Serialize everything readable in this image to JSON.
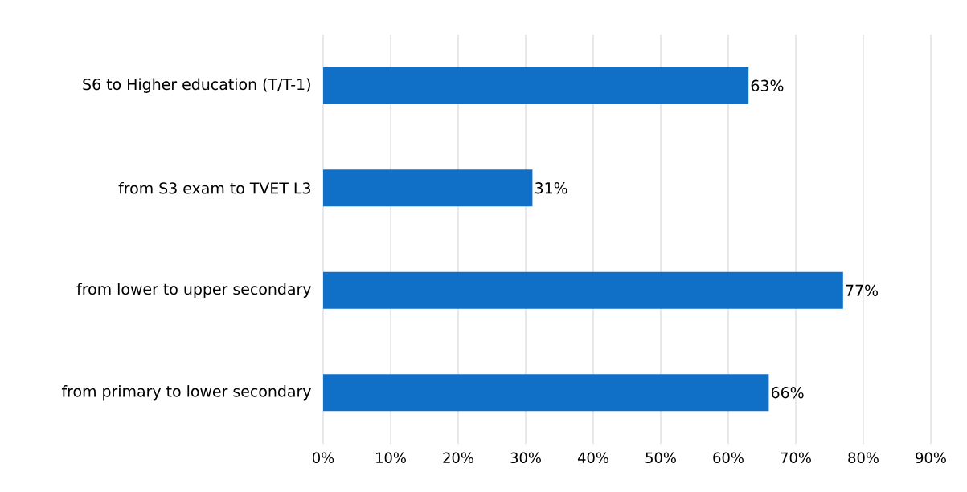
{
  "chart_data": {
    "type": "bar",
    "orientation": "horizontal",
    "categories": [
      "S6 to Higher education (T/T-1)",
      "from S3 exam to TVET L3",
      "from lower to upper secondary",
      "from primary to lower secondary"
    ],
    "values": [
      63,
      31,
      77,
      66
    ],
    "value_labels": [
      "63%",
      "31%",
      "77%",
      "66%"
    ],
    "color": "#1070c8",
    "xlim": [
      0,
      90
    ],
    "xticks": [
      {
        "value": 0,
        "label": "0%"
      },
      {
        "value": 10,
        "label": "10%"
      },
      {
        "value": 20,
        "label": "20%"
      },
      {
        "value": 30,
        "label": "30%"
      },
      {
        "value": 40,
        "label": "40%"
      },
      {
        "value": 50,
        "label": "50%"
      },
      {
        "value": 60,
        "label": "60%"
      },
      {
        "value": 70,
        "label": "70%"
      },
      {
        "value": 80,
        "label": "80%"
      },
      {
        "value": 90,
        "label": "90%"
      }
    ],
    "grid": "x"
  }
}
